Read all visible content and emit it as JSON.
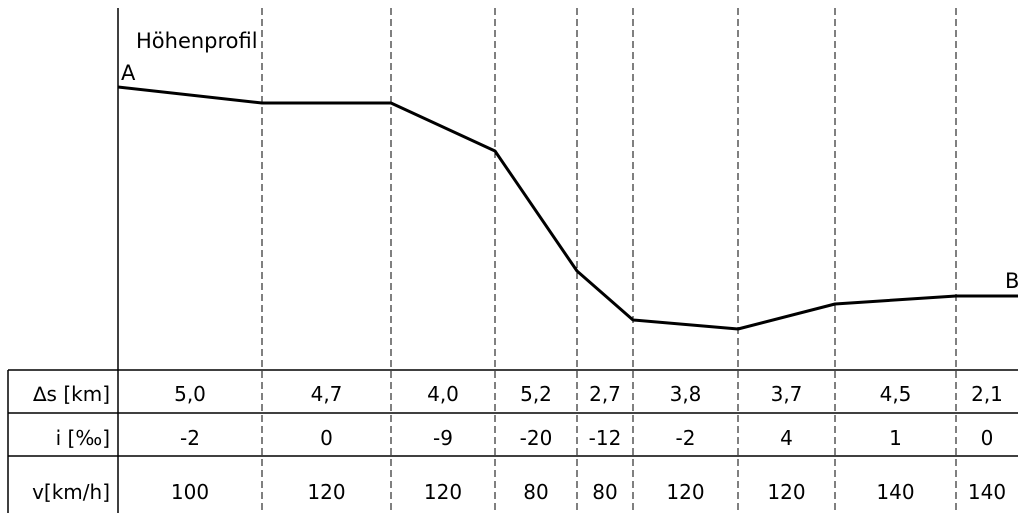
{
  "diagram": {
    "title": "Höhenprofil",
    "start_label": "A",
    "end_label": "B",
    "row_headers": [
      "∆s [km]",
      "i [‰]",
      "v[km/h]"
    ],
    "segments": [
      {
        "ds": "5,0",
        "i": "-2",
        "v": "100"
      },
      {
        "ds": "4,7",
        "i": "0",
        "v": "120"
      },
      {
        "ds": "4,0",
        "i": "-9",
        "v": "120"
      },
      {
        "ds": "5,2",
        "i": "-20",
        "v": "80"
      },
      {
        "ds": "2,7",
        "i": "-12",
        "v": "80"
      },
      {
        "ds": "3,8",
        "i": "-2",
        "v": "120"
      },
      {
        "ds": "3,7",
        "i": "4",
        "v": "120"
      },
      {
        "ds": "4,5",
        "i": "1",
        "v": "140"
      },
      {
        "ds": "2,1",
        "i": "0",
        "v": "140"
      }
    ]
  }
}
